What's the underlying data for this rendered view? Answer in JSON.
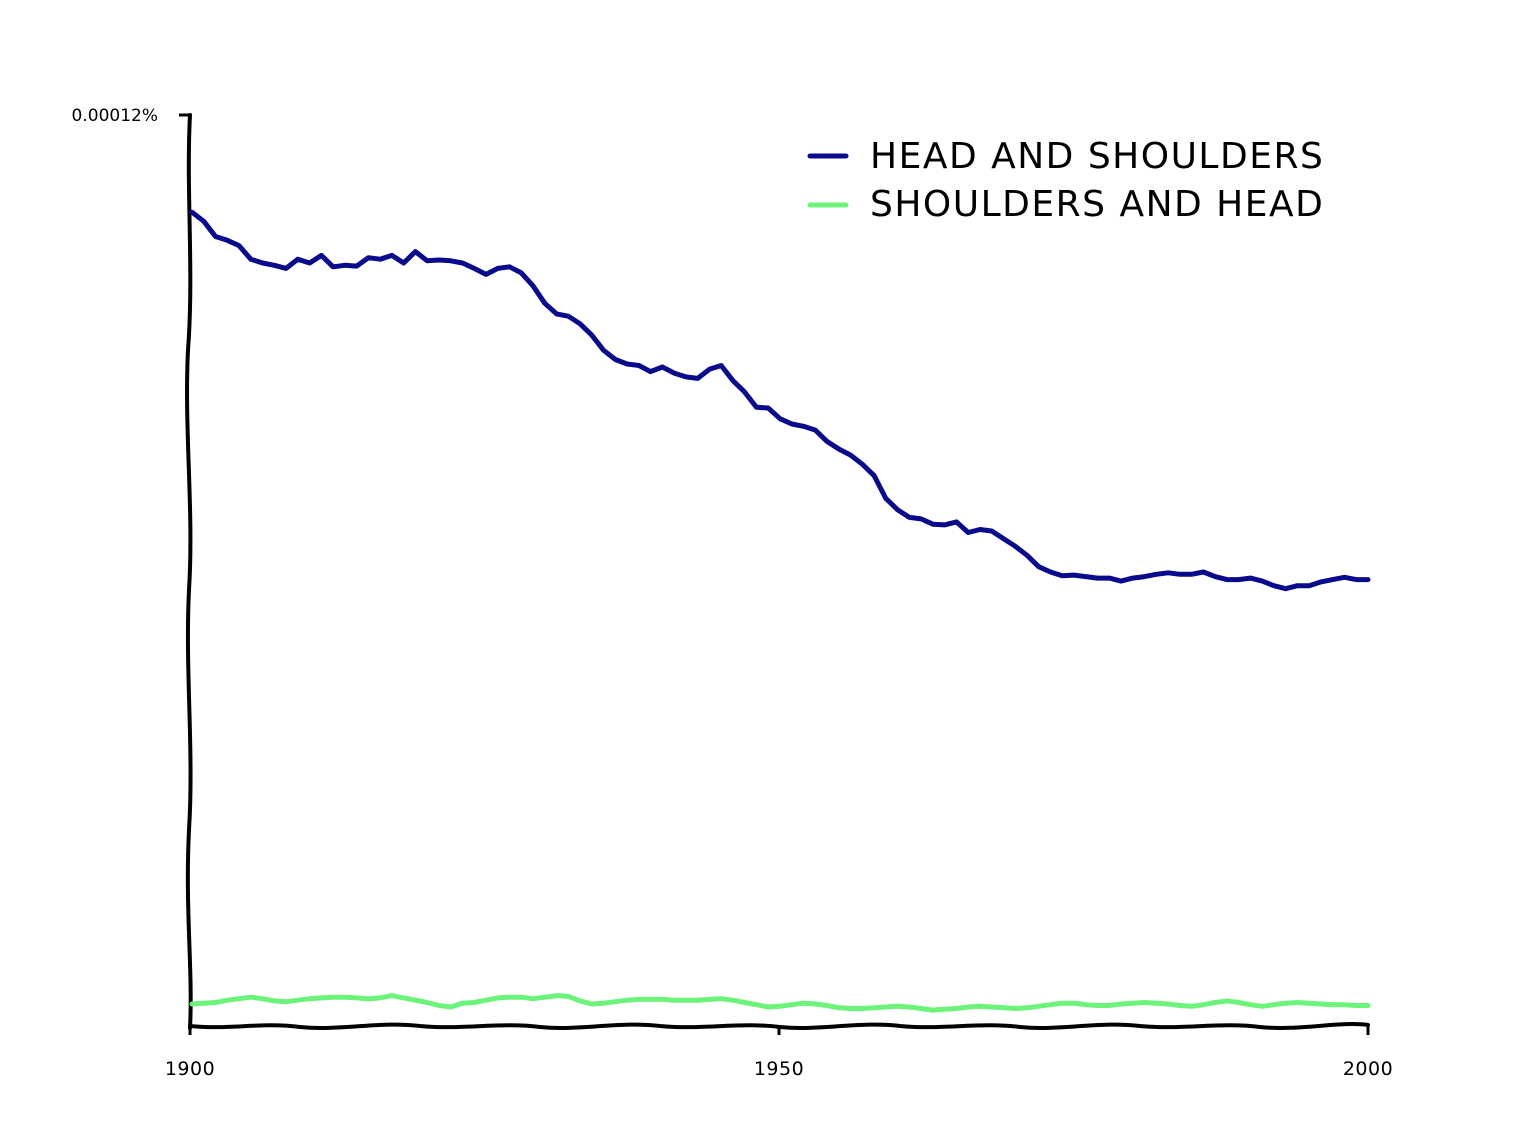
{
  "chart_data": {
    "type": "line",
    "title": "",
    "xlabel": "",
    "ylabel": "",
    "xlim": [
      1900,
      2000
    ],
    "ylim": [
      0,
      0.00012
    ],
    "x_ticks": [
      {
        "value": 1900,
        "label": "1900"
      },
      {
        "value": 1950,
        "label": "1950"
      },
      {
        "value": 2000,
        "label": "2000"
      }
    ],
    "y_ticks": [
      {
        "value": 0.00012,
        "label": "0.00012%"
      }
    ],
    "legend_position": "top-right",
    "grid": false,
    "x": [
      1900,
      1901,
      1902,
      1903,
      1904,
      1905,
      1906,
      1907,
      1908,
      1909,
      1910,
      1911,
      1912,
      1913,
      1914,
      1915,
      1916,
      1917,
      1918,
      1919,
      1920,
      1921,
      1922,
      1923,
      1924,
      1925,
      1926,
      1927,
      1928,
      1929,
      1930,
      1931,
      1932,
      1933,
      1934,
      1935,
      1936,
      1937,
      1938,
      1939,
      1940,
      1941,
      1942,
      1943,
      1944,
      1945,
      1946,
      1947,
      1948,
      1949,
      1950,
      1951,
      1952,
      1953,
      1954,
      1955,
      1956,
      1957,
      1958,
      1959,
      1960,
      1961,
      1962,
      1963,
      1964,
      1965,
      1966,
      1967,
      1968,
      1969,
      1970,
      1971,
      1972,
      1973,
      1974,
      1975,
      1976,
      1977,
      1978,
      1979,
      1980,
      1981,
      1982,
      1983,
      1984,
      1985,
      1986,
      1987,
      1988,
      1989,
      1990,
      1991,
      1992,
      1993,
      1994,
      1995,
      1996,
      1997,
      1998,
      1999,
      2000
    ],
    "series": [
      {
        "name": "HEAD AND SHOULDERS",
        "color": "#0a0a8c",
        "values": [
          0.0001072,
          0.000106,
          0.000104,
          0.0001035,
          0.0001028,
          0.000101,
          0.0001005,
          0.0001002,
          9.98e-05,
          0.000101,
          0.0001005,
          0.0001015,
          0.0001,
          0.0001002,
          0.0001001,
          0.0001012,
          0.000101,
          0.0001015,
          0.0001005,
          0.000102,
          0.0001008,
          0.0001009,
          0.0001008,
          0.0001005,
          9.98e-05,
          9.9e-05,
          9.98e-05,
          0.0001,
          9.92e-05,
          9.75e-05,
          9.52e-05,
          9.38e-05,
          9.35e-05,
          9.25e-05,
          9.1e-05,
          8.9e-05,
          8.78e-05,
          8.72e-05,
          8.7e-05,
          8.62e-05,
          8.68e-05,
          8.6e-05,
          8.55e-05,
          8.53e-05,
          8.65e-05,
          8.7e-05,
          8.5e-05,
          8.35e-05,
          8.15e-05,
          8.14e-05,
          8e-05,
          7.93e-05,
          7.9e-05,
          7.85e-05,
          7.7e-05,
          7.6e-05,
          7.52e-05,
          7.4e-05,
          7.25e-05,
          6.95e-05,
          6.8e-05,
          6.7e-05,
          6.68e-05,
          6.61e-05,
          6.6e-05,
          6.64e-05,
          6.5e-05,
          6.54e-05,
          6.52e-05,
          6.42e-05,
          6.32e-05,
          6.2e-05,
          6.05e-05,
          5.98e-05,
          5.93e-05,
          5.94e-05,
          5.92e-05,
          5.9e-05,
          5.9e-05,
          5.86e-05,
          5.9e-05,
          5.92e-05,
          5.95e-05,
          5.97e-05,
          5.95e-05,
          5.95e-05,
          5.98e-05,
          5.92e-05,
          5.88e-05,
          5.88e-05,
          5.9e-05,
          5.86e-05,
          5.8e-05,
          5.76e-05,
          5.8e-05,
          5.8e-05,
          5.85e-05,
          5.88e-05,
          5.91e-05,
          5.88e-05,
          5.88e-05
        ]
      },
      {
        "name": "SHOULDERS AND HEAD",
        "color": "#6cf37a",
        "values": [
          2.9e-06,
          3e-06,
          3.1e-06,
          3.4e-06,
          3.6e-06,
          3.8e-06,
          3.6e-06,
          3.3e-06,
          3.2e-06,
          3.4e-06,
          3.6e-06,
          3.7e-06,
          3.8e-06,
          3.8e-06,
          3.7e-06,
          3.6e-06,
          3.7e-06,
          4e-06,
          3.7e-06,
          3.4e-06,
          3.1e-06,
          2.7e-06,
          2.5e-06,
          3e-06,
          3.1e-06,
          3.4e-06,
          3.7e-06,
          3.8e-06,
          3.8e-06,
          3.6e-06,
          3.8e-06,
          4e-06,
          3.9e-06,
          3.3e-06,
          2.9e-06,
          3e-06,
          3.2e-06,
          3.4e-06,
          3.5e-06,
          3.5e-06,
          3.5e-06,
          3.4e-06,
          3.4e-06,
          3.4e-06,
          3.5e-06,
          3.6e-06,
          3.4e-06,
          3.1e-06,
          2.8e-06,
          2.5e-06,
          2.6e-06,
          2.8e-06,
          3e-06,
          2.9e-06,
          2.7e-06,
          2.4e-06,
          2.3e-06,
          2.3e-06,
          2.4e-06,
          2.5e-06,
          2.6e-06,
          2.5e-06,
          2.3e-06,
          2.1e-06,
          2.2e-06,
          2.3e-06,
          2.5e-06,
          2.6e-06,
          2.5e-06,
          2.4e-06,
          2.3e-06,
          2.4e-06,
          2.6e-06,
          2.8e-06,
          3e-06,
          3e-06,
          2.8e-06,
          2.7e-06,
          2.7e-06,
          2.9e-06,
          3e-06,
          3.1e-06,
          3e-06,
          2.9e-06,
          2.7e-06,
          2.6e-06,
          2.8e-06,
          3.1e-06,
          3.3e-06,
          3.1e-06,
          2.8e-06,
          2.6e-06,
          2.8e-06,
          3e-06,
          3.1e-06,
          3e-06,
          2.9e-06,
          2.8e-06,
          2.8e-06,
          2.7e-06,
          2.7e-06
        ]
      }
    ]
  }
}
